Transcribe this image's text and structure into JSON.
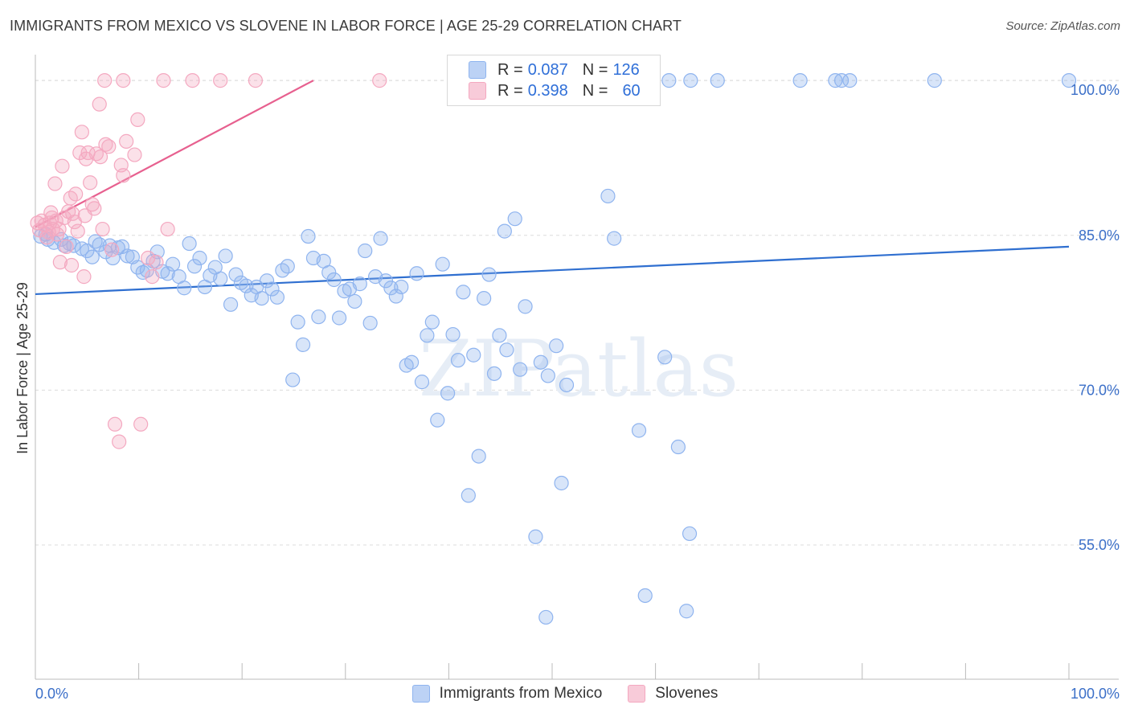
{
  "title": "IMMIGRANTS FROM MEXICO VS SLOVENE IN LABOR FORCE | AGE 25-29 CORRELATION CHART",
  "source": "Source: ZipAtlas.com",
  "watermark": "ZIPatlas",
  "legend": {
    "rows": [
      {
        "r_label": "R =",
        "r_value": "0.087",
        "n_label": "N =",
        "n_value": "126",
        "color": "#8fb4ef"
      },
      {
        "r_label": "R =",
        "r_value": "0.398",
        "n_label": "N =",
        "n_value": "60",
        "color": "#f4a8c0"
      }
    ]
  },
  "bottom_legend": [
    {
      "label": "Immigrants from Mexico",
      "color": "#8fb4ef"
    },
    {
      "label": "Slovenes",
      "color": "#f4a8c0"
    }
  ],
  "chart_data": {
    "type": "scatter",
    "title": "IMMIGRANTS FROM MEXICO VS SLOVENE IN LABOR FORCE | AGE 25-29 CORRELATION CHART",
    "xlabel": "",
    "ylabel": "In Labor Force | Age 25-29",
    "xlim": [
      0,
      100
    ],
    "ylim": [
      42,
      102.5
    ],
    "x_tick_labels": [
      "0.0%",
      "100.0%"
    ],
    "y_ticks": [
      55,
      70,
      85,
      100
    ],
    "y_tick_labels": [
      "55.0%",
      "70.0%",
      "85.0%",
      "100.0%"
    ],
    "grid": true,
    "series": [
      {
        "name": "Immigrants from Mexico",
        "color": "#8fb4ef",
        "trend": {
          "x": [
            0,
            100
          ],
          "y": [
            79.3,
            83.9
          ],
          "color": "#2f6fd0"
        },
        "points": [
          [
            0.5,
            84.9
          ],
          [
            1.0,
            85.1
          ],
          [
            1.2,
            84.6
          ],
          [
            1.8,
            84.3
          ],
          [
            2.5,
            84.6
          ],
          [
            2.8,
            84.0
          ],
          [
            3.3,
            84.2
          ],
          [
            3.7,
            84.0
          ],
          [
            4.5,
            83.7
          ],
          [
            5.0,
            83.5
          ],
          [
            5.5,
            82.9
          ],
          [
            5.8,
            84.4
          ],
          [
            6.2,
            84.1
          ],
          [
            6.8,
            83.4
          ],
          [
            7.2,
            84.0
          ],
          [
            7.5,
            82.8
          ],
          [
            8.0,
            83.8
          ],
          [
            8.4,
            83.9
          ],
          [
            8.9,
            83.0
          ],
          [
            9.4,
            82.9
          ],
          [
            9.9,
            81.9
          ],
          [
            10.4,
            81.4
          ],
          [
            10.8,
            81.6
          ],
          [
            11.4,
            82.5
          ],
          [
            11.8,
            83.4
          ],
          [
            12.3,
            81.5
          ],
          [
            12.8,
            81.3
          ],
          [
            13.3,
            82.2
          ],
          [
            13.9,
            81.0
          ],
          [
            14.4,
            79.9
          ],
          [
            14.9,
            84.2
          ],
          [
            15.4,
            82.0
          ],
          [
            15.9,
            82.8
          ],
          [
            16.4,
            80.0
          ],
          [
            16.9,
            81.1
          ],
          [
            17.4,
            81.9
          ],
          [
            17.9,
            80.8
          ],
          [
            18.4,
            83.0
          ],
          [
            18.9,
            78.3
          ],
          [
            19.4,
            81.2
          ],
          [
            19.9,
            80.4
          ],
          [
            20.4,
            80.1
          ],
          [
            20.9,
            79.2
          ],
          [
            21.4,
            80.0
          ],
          [
            21.9,
            78.9
          ],
          [
            22.4,
            80.6
          ],
          [
            22.9,
            79.8
          ],
          [
            23.4,
            79.0
          ],
          [
            23.9,
            81.6
          ],
          [
            24.4,
            82.0
          ],
          [
            24.9,
            71.0
          ],
          [
            25.4,
            76.6
          ],
          [
            25.9,
            74.4
          ],
          [
            26.4,
            84.9
          ],
          [
            26.9,
            82.8
          ],
          [
            27.4,
            77.1
          ],
          [
            27.9,
            82.5
          ],
          [
            28.4,
            81.4
          ],
          [
            28.9,
            80.7
          ],
          [
            29.4,
            77.0
          ],
          [
            29.9,
            79.6
          ],
          [
            30.4,
            79.8
          ],
          [
            30.9,
            78.6
          ],
          [
            31.4,
            80.3
          ],
          [
            31.9,
            83.5
          ],
          [
            32.4,
            76.5
          ],
          [
            32.9,
            81.0
          ],
          [
            33.4,
            84.7
          ],
          [
            33.9,
            80.6
          ],
          [
            34.4,
            79.9
          ],
          [
            34.9,
            79.1
          ],
          [
            35.4,
            80.0
          ],
          [
            35.9,
            72.4
          ],
          [
            36.4,
            72.7
          ],
          [
            36.9,
            81.3
          ],
          [
            37.4,
            70.8
          ],
          [
            37.9,
            75.3
          ],
          [
            38.4,
            76.6
          ],
          [
            38.9,
            67.1
          ],
          [
            39.4,
            82.2
          ],
          [
            39.9,
            69.7
          ],
          [
            40.4,
            75.4
          ],
          [
            40.9,
            72.9
          ],
          [
            41.4,
            79.5
          ],
          [
            41.9,
            59.8
          ],
          [
            42.4,
            73.4
          ],
          [
            42.9,
            63.6
          ],
          [
            43.4,
            78.9
          ],
          [
            43.9,
            81.2
          ],
          [
            44.4,
            71.6
          ],
          [
            44.9,
            75.3
          ],
          [
            45.4,
            85.4
          ],
          [
            45.6,
            73.9
          ],
          [
            46.4,
            86.6
          ],
          [
            46.9,
            72.0
          ],
          [
            47.4,
            78.1
          ],
          [
            48.4,
            55.8
          ],
          [
            48.9,
            72.7
          ],
          [
            49.4,
            48.0
          ],
          [
            49.6,
            71.4
          ],
          [
            50.4,
            74.3
          ],
          [
            50.9,
            61.0
          ],
          [
            51.4,
            70.5
          ],
          [
            55.4,
            88.8
          ],
          [
            56.0,
            84.7
          ],
          [
            58.4,
            66.1
          ],
          [
            59.0,
            50.1
          ],
          [
            60.9,
            73.2
          ],
          [
            62.2,
            64.5
          ],
          [
            63.0,
            48.6
          ],
          [
            63.3,
            56.1
          ],
          [
            61.3,
            100.0
          ],
          [
            63.4,
            100.0
          ],
          [
            66.0,
            100.0
          ],
          [
            74.0,
            100.0
          ],
          [
            77.4,
            100.0
          ],
          [
            78.0,
            100.0
          ],
          [
            78.8,
            100.0
          ],
          [
            87.0,
            100.0
          ],
          [
            100.0,
            100.0
          ],
          [
            53.6,
            100.0
          ],
          [
            54.2,
            100.0
          ],
          [
            54.8,
            100.0
          ],
          [
            56.5,
            100.0
          ],
          [
            52.5,
            100.0
          ],
          [
            57.9,
            100.0
          ]
        ]
      },
      {
        "name": "Slovenes",
        "color": "#f4a8c0",
        "trend": {
          "x": [
            0,
            26.9
          ],
          "y": [
            85.8,
            100.0
          ],
          "color": "#e7608f"
        },
        "points": [
          [
            0.2,
            86.2
          ],
          [
            0.4,
            85.5
          ],
          [
            0.6,
            86.4
          ],
          [
            0.9,
            86.0
          ],
          [
            1.1,
            84.8
          ],
          [
            1.3,
            85.3
          ],
          [
            1.4,
            86.2
          ],
          [
            1.5,
            87.2
          ],
          [
            1.6,
            86.7
          ],
          [
            1.7,
            85.6
          ],
          [
            1.9,
            90.0
          ],
          [
            2.0,
            86.4
          ],
          [
            2.1,
            85.1
          ],
          [
            2.3,
            85.6
          ],
          [
            2.4,
            82.4
          ],
          [
            2.6,
            91.7
          ],
          [
            2.8,
            86.7
          ],
          [
            3.0,
            83.9
          ],
          [
            3.2,
            87.3
          ],
          [
            3.4,
            88.6
          ],
          [
            3.5,
            82.1
          ],
          [
            3.6,
            87.1
          ],
          [
            3.8,
            86.3
          ],
          [
            3.9,
            89.0
          ],
          [
            4.1,
            85.4
          ],
          [
            4.3,
            93.0
          ],
          [
            4.5,
            95.0
          ],
          [
            4.7,
            81.0
          ],
          [
            4.8,
            86.9
          ],
          [
            4.9,
            92.4
          ],
          [
            5.1,
            93.0
          ],
          [
            5.3,
            90.1
          ],
          [
            5.5,
            88.0
          ],
          [
            5.7,
            87.6
          ],
          [
            5.9,
            92.9
          ],
          [
            6.2,
            97.7
          ],
          [
            6.3,
            92.6
          ],
          [
            6.5,
            85.6
          ],
          [
            6.8,
            93.8
          ],
          [
            7.1,
            93.6
          ],
          [
            7.4,
            83.6
          ],
          [
            7.7,
            66.7
          ],
          [
            8.1,
            65.0
          ],
          [
            8.3,
            91.8
          ],
          [
            8.5,
            90.8
          ],
          [
            8.8,
            94.1
          ],
          [
            9.6,
            92.8
          ],
          [
            9.9,
            96.2
          ],
          [
            10.2,
            66.7
          ],
          [
            10.9,
            82.8
          ],
          [
            11.3,
            81.0
          ],
          [
            11.7,
            82.4
          ],
          [
            12.8,
            85.6
          ],
          [
            6.7,
            100.0
          ],
          [
            8.5,
            100.0
          ],
          [
            12.4,
            100.0
          ],
          [
            15.2,
            100.0
          ],
          [
            17.9,
            100.0
          ],
          [
            21.3,
            100.0
          ],
          [
            33.3,
            100.0
          ]
        ]
      }
    ]
  }
}
